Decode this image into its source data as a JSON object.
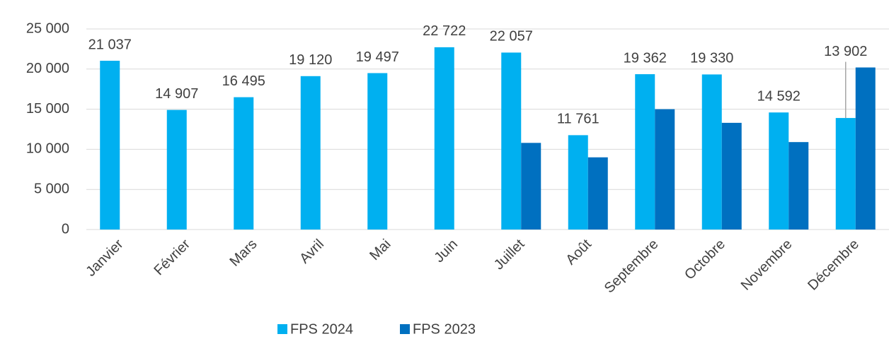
{
  "chart_data": {
    "type": "bar",
    "categories": [
      "Janvier",
      "Février",
      "Mars",
      "Avril",
      "Mai",
      "Juin",
      "Juillet",
      "Août",
      "Septembre",
      "Octobre",
      "Novembre",
      "Décembre"
    ],
    "series": [
      {
        "name": "FPS 2024",
        "color": "#00b0f0",
        "values": [
          21037,
          14907,
          16495,
          19120,
          19497,
          22722,
          22057,
          11761,
          19362,
          19330,
          14592,
          13902
        ],
        "value_labels": [
          "21 037",
          "14 907",
          "16 495",
          "19 120",
          "19 497",
          "22 722",
          "22 057",
          "11 761",
          "19 362",
          "19 330",
          "14 592",
          "13 902"
        ]
      },
      {
        "name": "FPS 2023",
        "color": "#0070c0",
        "values": [
          null,
          null,
          null,
          null,
          null,
          null,
          10800,
          9000,
          15000,
          13300,
          10900,
          20200
        ]
      }
    ],
    "ylim": [
      0,
      25000
    ],
    "yticks": [
      0,
      {
        "value": 5000,
        "label": "5 000"
      },
      {
        "value": 10000,
        "label": "10 000"
      },
      {
        "value": 15000,
        "label": "15 000"
      },
      {
        "value": 20000,
        "label": "20 000"
      },
      {
        "value": 25000,
        "label": "25 000"
      }
    ],
    "grid": true,
    "legend": "bottom"
  }
}
